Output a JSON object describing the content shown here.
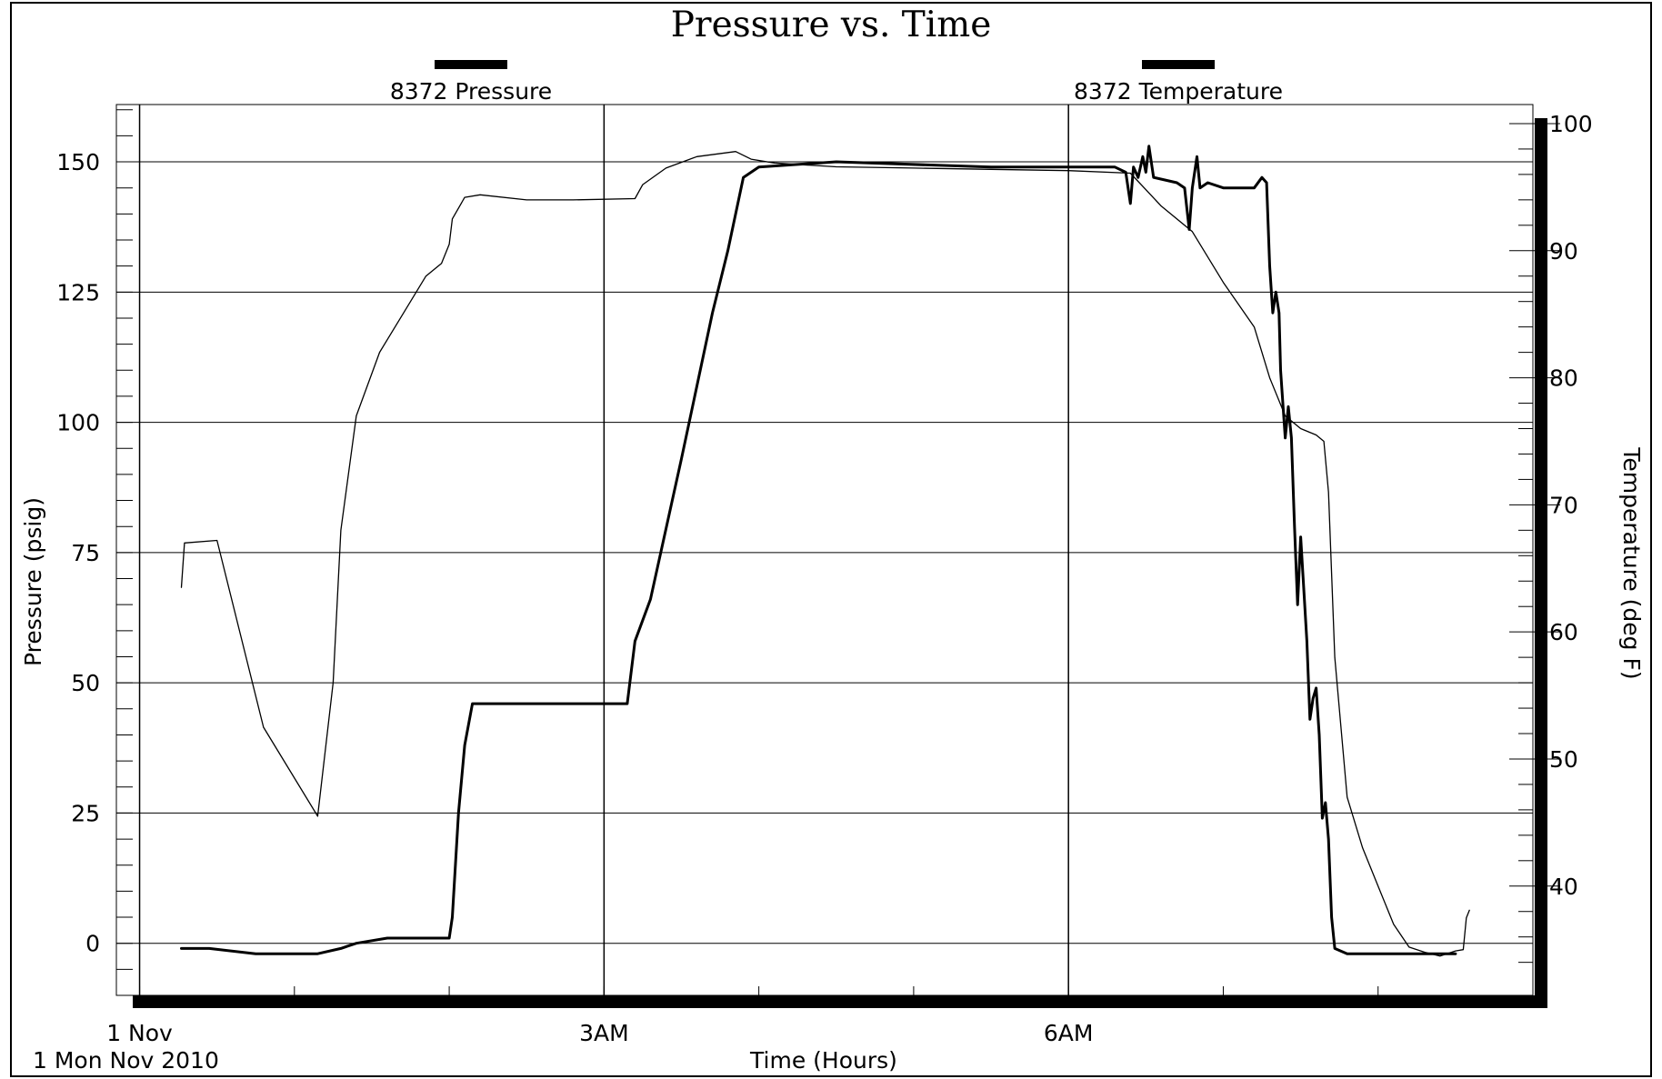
{
  "chart_data": {
    "type": "line",
    "title": "Pressure vs. Time",
    "xlabel": "Time (Hours)",
    "ylabel": "Pressure (psig)",
    "y2label": "Temperature (deg F)",
    "x_tick_labels": [
      "1 Nov",
      "3AM",
      "6AM"
    ],
    "x_date_label": "1 Mon Nov 2010",
    "x_unit": "hours after 1 Nov 2010 00:00",
    "xlim": [
      -0.15,
      9.0
    ],
    "ylim": [
      -10,
      161
    ],
    "y2lim": [
      31.4,
      101.5
    ],
    "y_ticks": [
      0,
      25,
      50,
      75,
      100,
      125,
      150
    ],
    "y2_ticks": [
      40,
      50,
      60,
      70,
      80,
      90,
      100
    ],
    "grid": true,
    "legend_position": "top",
    "series": [
      {
        "name": "8372 Pressure",
        "axis": "left",
        "color": "#000000",
        "style": "thick",
        "points": [
          [
            0.27,
            -1
          ],
          [
            0.45,
            -1
          ],
          [
            0.75,
            -2
          ],
          [
            1.15,
            -2
          ],
          [
            1.3,
            -1
          ],
          [
            1.4,
            0
          ],
          [
            1.6,
            1
          ],
          [
            1.8,
            1
          ],
          [
            2.0,
            1
          ],
          [
            2.02,
            5
          ],
          [
            2.06,
            25
          ],
          [
            2.1,
            38
          ],
          [
            2.15,
            46
          ],
          [
            2.5,
            46
          ],
          [
            3.0,
            46
          ],
          [
            3.15,
            46
          ],
          [
            3.2,
            58
          ],
          [
            3.3,
            66
          ],
          [
            3.5,
            93
          ],
          [
            3.7,
            121
          ],
          [
            3.8,
            133
          ],
          [
            3.9,
            147
          ],
          [
            4.0,
            149
          ],
          [
            4.5,
            150
          ],
          [
            5.5,
            149
          ],
          [
            6.3,
            149
          ],
          [
            6.37,
            148
          ],
          [
            6.4,
            142
          ],
          [
            6.42,
            149
          ],
          [
            6.45,
            147
          ],
          [
            6.48,
            151
          ],
          [
            6.5,
            148
          ],
          [
            6.52,
            153
          ],
          [
            6.55,
            147
          ],
          [
            6.7,
            146
          ],
          [
            6.75,
            145
          ],
          [
            6.78,
            137
          ],
          [
            6.8,
            145
          ],
          [
            6.83,
            151
          ],
          [
            6.85,
            145
          ],
          [
            6.9,
            146
          ],
          [
            7.0,
            145
          ],
          [
            7.1,
            145
          ],
          [
            7.2,
            145
          ],
          [
            7.25,
            147
          ],
          [
            7.28,
            146
          ],
          [
            7.3,
            130
          ],
          [
            7.32,
            121
          ],
          [
            7.34,
            125
          ],
          [
            7.36,
            121
          ],
          [
            7.37,
            110
          ],
          [
            7.4,
            97
          ],
          [
            7.42,
            103
          ],
          [
            7.44,
            97
          ],
          [
            7.46,
            80
          ],
          [
            7.48,
            65
          ],
          [
            7.5,
            78
          ],
          [
            7.52,
            68
          ],
          [
            7.54,
            58
          ],
          [
            7.56,
            43
          ],
          [
            7.58,
            47
          ],
          [
            7.6,
            49
          ],
          [
            7.62,
            40
          ],
          [
            7.64,
            24
          ],
          [
            7.66,
            27
          ],
          [
            7.68,
            20
          ],
          [
            7.7,
            5
          ],
          [
            7.72,
            -1
          ],
          [
            7.8,
            -2
          ],
          [
            8.0,
            -2
          ],
          [
            8.2,
            -2
          ],
          [
            8.5,
            -2
          ]
        ]
      },
      {
        "name": "8372 Temperature",
        "axis": "right",
        "color": "#000000",
        "style": "thin",
        "points": [
          [
            0.27,
            63.5
          ],
          [
            0.29,
            67.0
          ],
          [
            0.5,
            67.2
          ],
          [
            0.8,
            52.5
          ],
          [
            1.15,
            45.5
          ],
          [
            1.25,
            56
          ],
          [
            1.3,
            68
          ],
          [
            1.4,
            77
          ],
          [
            1.55,
            82
          ],
          [
            1.7,
            85
          ],
          [
            1.85,
            88
          ],
          [
            1.95,
            89
          ],
          [
            2.0,
            90.5
          ],
          [
            2.02,
            92.5
          ],
          [
            2.1,
            94.2
          ],
          [
            2.2,
            94.4
          ],
          [
            2.5,
            94.0
          ],
          [
            2.8,
            94.0
          ],
          [
            3.2,
            94.1
          ],
          [
            3.25,
            95.2
          ],
          [
            3.4,
            96.5
          ],
          [
            3.6,
            97.4
          ],
          [
            3.85,
            97.8
          ],
          [
            3.95,
            97.2
          ],
          [
            4.1,
            96.9
          ],
          [
            4.5,
            96.6
          ],
          [
            5.0,
            96.5
          ],
          [
            5.5,
            96.4
          ],
          [
            6.0,
            96.3
          ],
          [
            6.4,
            96.1
          ],
          [
            6.6,
            93.5
          ],
          [
            6.8,
            91.5
          ],
          [
            7.0,
            87.5
          ],
          [
            7.2,
            84
          ],
          [
            7.3,
            80
          ],
          [
            7.4,
            77
          ],
          [
            7.5,
            76
          ],
          [
            7.6,
            75.5
          ],
          [
            7.65,
            75
          ],
          [
            7.68,
            71
          ],
          [
            7.72,
            58
          ],
          [
            7.8,
            47
          ],
          [
            7.9,
            43
          ],
          [
            8.0,
            40
          ],
          [
            8.1,
            37
          ],
          [
            8.2,
            35.2
          ],
          [
            8.3,
            34.8
          ],
          [
            8.4,
            34.5
          ],
          [
            8.5,
            34.9
          ],
          [
            8.55,
            35.0
          ],
          [
            8.57,
            37.5
          ],
          [
            8.59,
            38.1
          ]
        ]
      }
    ]
  }
}
